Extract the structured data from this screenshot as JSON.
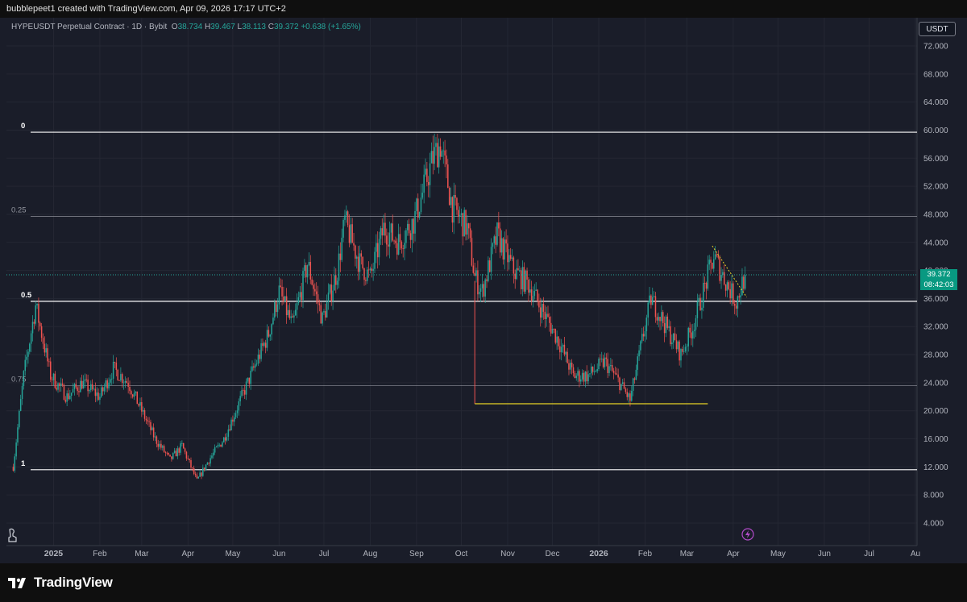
{
  "header": {
    "title": "bubblepeet1 created with TradingView.com, Apr 09, 2026 17:17 UTC+2"
  },
  "legend": {
    "symbol": "HYPEUSDT Perpetual Contract · 1D · Bybit",
    "o_label": "O",
    "o_value": "38.734",
    "h_label": "H",
    "h_value": "39.467",
    "l_label": "L",
    "l_value": "38.113",
    "c_label": "C",
    "c_value": "39.372",
    "change": "+0.638 (+1.65%)"
  },
  "currency_button": "USDT",
  "price_badge": {
    "price": "39.372",
    "countdown": "08:42:03"
  },
  "brand": "TradingView",
  "icons": {
    "bottom_left": "measure-icon",
    "alert": "flash-icon",
    "logo": "tradingview-logo-icon"
  },
  "colors": {
    "up": "#26a69a",
    "down": "#ef5350",
    "fib": "#ffffff",
    "support": "#e6d226",
    "drop_line": "#ef5350",
    "background": "#1a1d29"
  },
  "chart_data": {
    "type": "candlestick",
    "title": "",
    "ylabel": "",
    "ylim": [
      2,
      74
    ],
    "y_ticks": [
      "72.000",
      "68.000",
      "64.000",
      "60.000",
      "56.000",
      "52.000",
      "48.000",
      "44.000",
      "40.000",
      "36.000",
      "32.000",
      "28.000",
      "24.000",
      "20.000",
      "16.000",
      "12.000",
      "8.000",
      "4.000"
    ],
    "x_labels": [
      "2025",
      "Feb",
      "Mar",
      "Apr",
      "May",
      "Jun",
      "Jul",
      "Aug",
      "Sep",
      "Oct",
      "Nov",
      "Dec",
      "2026",
      "Feb",
      "Mar",
      "Apr",
      "May",
      "Jun",
      "Jul",
      "Au"
    ],
    "x_label_dates": [
      "2025-01-01",
      "2025-02-01",
      "2025-03-01",
      "2025-04-01",
      "2025-05-01",
      "2025-06-01",
      "2025-07-01",
      "2025-08-01",
      "2025-09-01",
      "2025-10-01",
      "2025-11-01",
      "2025-12-01",
      "2026-01-01",
      "2026-02-01",
      "2026-03-01",
      "2026-04-01",
      "2026-05-01",
      "2026-06-01",
      "2026-07-01",
      "2026-08-01"
    ],
    "x_range": [
      "2024-12-01",
      "2026-08-01"
    ],
    "fib_levels": [
      {
        "label": "0",
        "price": 59.7
      },
      {
        "label": "0.25",
        "price": 47.7
      },
      {
        "label": "0.5",
        "price": 35.6
      },
      {
        "label": "0.75",
        "price": 23.6
      },
      {
        "label": "1",
        "price": 11.6
      }
    ],
    "current_price": 39.372,
    "support_line": {
      "price": 21.0,
      "from": "2025-10-10",
      "to": "2026-03-15"
    },
    "drop_line": {
      "date": "2025-10-10",
      "from_price": 38.5,
      "to_price": 21.0
    },
    "trend_line": {
      "from_date": "2026-03-18",
      "from_price": 43.5,
      "to_date": "2026-04-10",
      "to_price": 36.2
    },
    "price_path": [
      [
        "2024-12-05",
        12
      ],
      [
        "2024-12-12",
        25
      ],
      [
        "2024-12-20",
        35
      ],
      [
        "2024-12-30",
        25
      ],
      [
        "2025-01-10",
        22
      ],
      [
        "2025-01-20",
        24
      ],
      [
        "2025-02-01",
        22
      ],
      [
        "2025-02-10",
        26
      ],
      [
        "2025-02-20",
        24
      ],
      [
        "2025-03-01",
        20
      ],
      [
        "2025-03-10",
        16
      ],
      [
        "2025-03-20",
        13
      ],
      [
        "2025-03-28",
        15
      ],
      [
        "2025-04-07",
        10
      ],
      [
        "2025-04-15",
        13
      ],
      [
        "2025-04-25",
        16
      ],
      [
        "2025-05-05",
        21
      ],
      [
        "2025-05-15",
        26
      ],
      [
        "2025-05-25",
        31
      ],
      [
        "2025-06-01",
        37
      ],
      [
        "2025-06-10",
        32
      ],
      [
        "2025-06-20",
        41
      ],
      [
        "2025-06-30",
        33
      ],
      [
        "2025-07-10",
        40
      ],
      [
        "2025-07-15",
        47
      ],
      [
        "2025-07-25",
        41
      ],
      [
        "2025-08-01",
        39
      ],
      [
        "2025-08-10",
        46
      ],
      [
        "2025-08-20",
        44
      ],
      [
        "2025-08-30",
        47
      ],
      [
        "2025-09-05",
        51
      ],
      [
        "2025-09-12",
        56
      ],
      [
        "2025-09-17",
        58
      ],
      [
        "2025-09-25",
        49
      ],
      [
        "2025-10-05",
        46
      ],
      [
        "2025-10-10",
        39
      ],
      [
        "2025-10-15",
        37
      ],
      [
        "2025-10-25",
        45
      ],
      [
        "2025-11-05",
        40
      ],
      [
        "2025-11-15",
        38
      ],
      [
        "2025-11-25",
        34
      ],
      [
        "2025-12-05",
        30
      ],
      [
        "2025-12-15",
        25
      ],
      [
        "2025-12-25",
        25
      ],
      [
        "2026-01-05",
        27
      ],
      [
        "2026-01-15",
        24
      ],
      [
        "2026-01-22",
        21.5
      ],
      [
        "2026-01-30",
        30
      ],
      [
        "2026-02-05",
        36
      ],
      [
        "2026-02-15",
        32
      ],
      [
        "2026-02-25",
        28
      ],
      [
        "2026-03-05",
        32
      ],
      [
        "2026-03-12",
        37
      ],
      [
        "2026-03-19",
        42
      ],
      [
        "2026-03-28",
        38
      ],
      [
        "2026-04-03",
        35.5
      ],
      [
        "2026-04-09",
        39.4
      ]
    ]
  }
}
